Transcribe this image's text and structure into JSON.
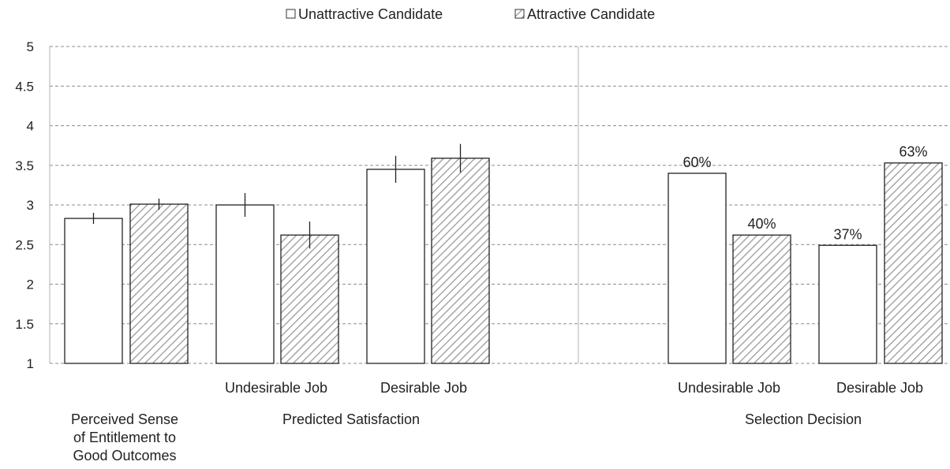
{
  "legend": {
    "unattractive": "Unattractive Candidate",
    "attractive": "Attractive Candidate"
  },
  "chart_data": {
    "type": "bar",
    "ylim": [
      1,
      5
    ],
    "yticks": [
      "1",
      "1.5",
      "2",
      "2.5",
      "3",
      "3.5",
      "4",
      "4.5",
      "5"
    ],
    "grid": true,
    "legend_position": "top-center",
    "series": [
      {
        "name": "Unattractive Candidate",
        "fill": "white"
      },
      {
        "name": "Attractive Candidate",
        "fill": "hatched"
      }
    ],
    "groups": [
      {
        "name": "Perceived Sense of Entitlement to Good Outcomes",
        "name_lines": [
          "Perceived Sense",
          "of Entitlement to",
          "Good Outcomes"
        ],
        "subgroups": [
          {
            "label": "",
            "values": [
              2.83,
              3.01
            ],
            "error": [
              0.07,
              0.07
            ],
            "value_labels": [
              "",
              ""
            ]
          }
        ]
      },
      {
        "name": "Predicted Satisfaction",
        "name_lines": [
          "Predicted Satisfaction"
        ],
        "subgroups": [
          {
            "label": "Undesirable Job",
            "values": [
              3.0,
              2.62
            ],
            "error": [
              0.15,
              0.17
            ],
            "value_labels": [
              "",
              ""
            ]
          },
          {
            "label": "Desirable Job",
            "values": [
              3.45,
              3.59
            ],
            "error": [
              0.17,
              0.18
            ],
            "value_labels": [
              "",
              ""
            ]
          }
        ]
      },
      {
        "name": "Selection Decision",
        "name_lines": [
          "Selection Decision"
        ],
        "subgroups": [
          {
            "label": "Undesirable Job",
            "values": [
              3.4,
              2.62
            ],
            "error": [
              0,
              0
            ],
            "value_labels": [
              "60%",
              "40%"
            ]
          },
          {
            "label": "Desirable Job",
            "values": [
              2.49,
              3.53
            ],
            "error": [
              0,
              0
            ],
            "value_labels": [
              "37%",
              "63%"
            ]
          }
        ]
      }
    ]
  }
}
